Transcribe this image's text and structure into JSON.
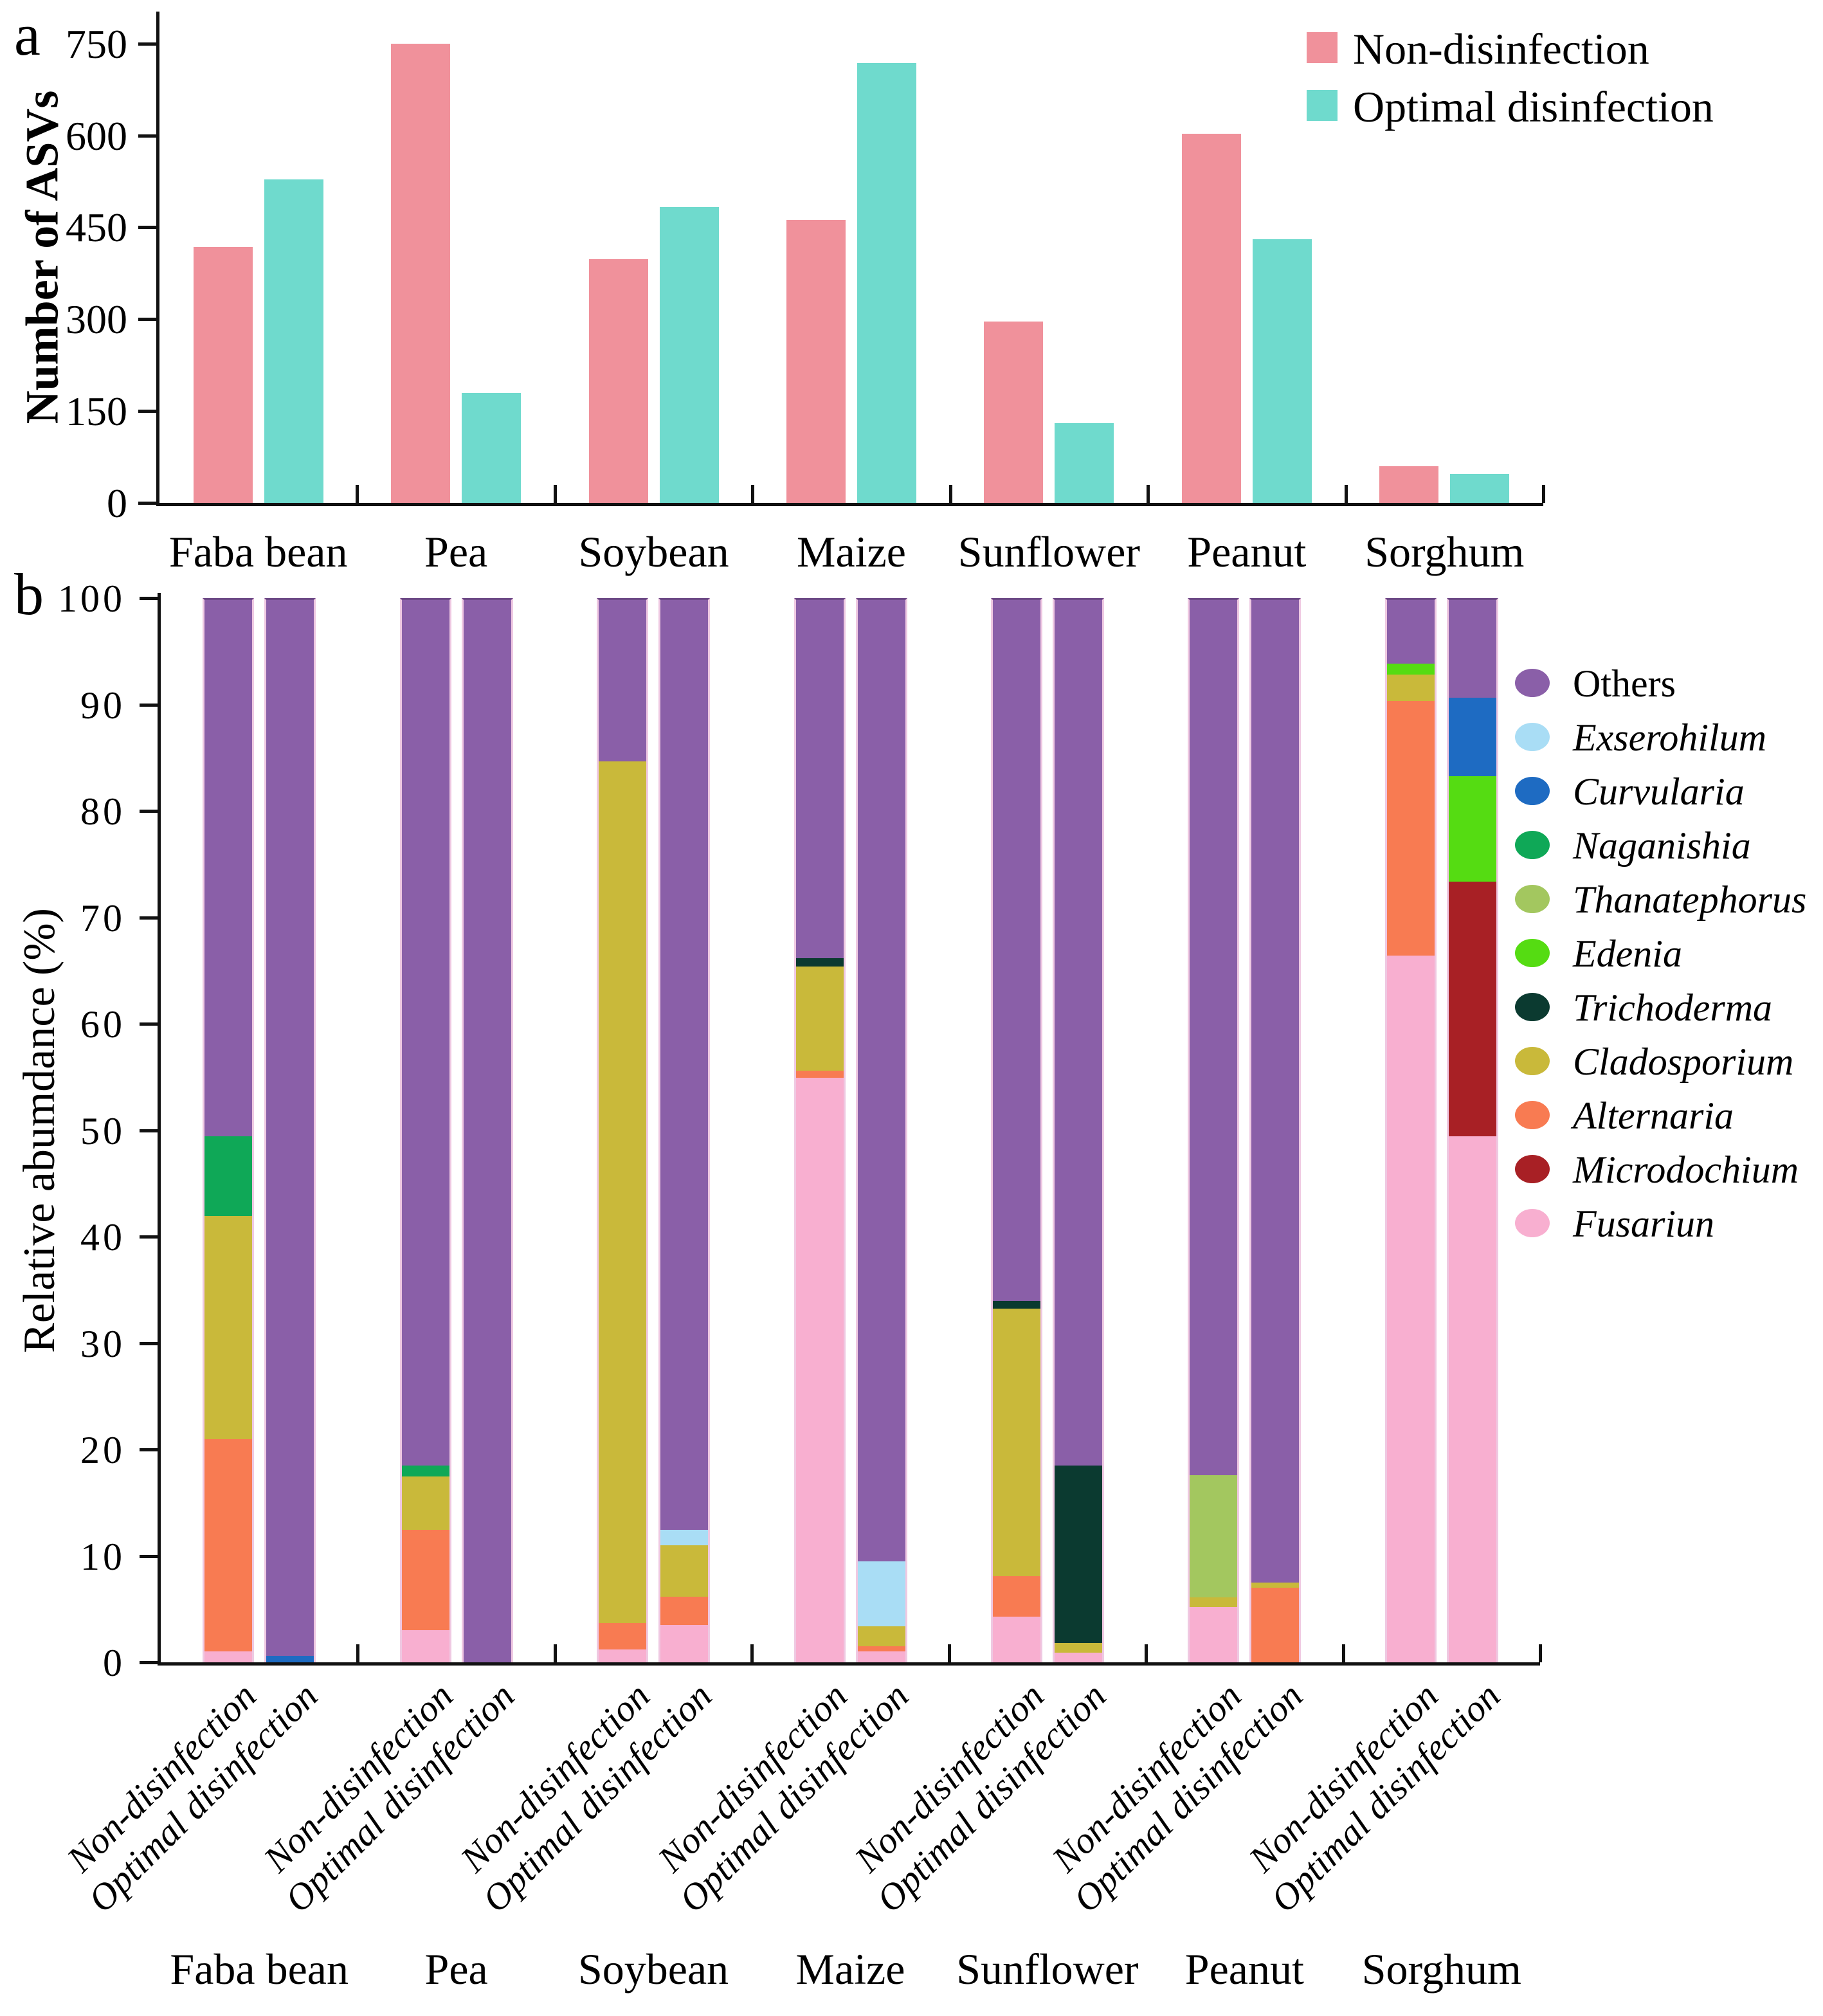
{
  "figure": {
    "panel_a_label": "a",
    "panel_b_label": "b"
  },
  "categories": [
    "Faba bean",
    "Pea",
    "Soybean",
    "Maize",
    "Sunflower",
    "Peanut",
    "Sorghum"
  ],
  "conditions": [
    "Non-disinfection",
    "Optimal disinfection"
  ],
  "colors": {
    "non_disinfection": "#F0919B",
    "optimal_disinfection": "#6FDACD",
    "Others": "#8A5FA8",
    "Exserohilum": "#A9DDF5",
    "Curvularia": "#1E6BC2",
    "Naganishia": "#0FA857",
    "Thanatephorus": "#A3C75F",
    "Edenia": "#55DC12",
    "Trichoderma": "#0B3A30",
    "Cladosporium": "#C9B93A",
    "Alternaria": "#F87B52",
    "Microdochium": "#A82025",
    "Fusariun": "#F8AFD0"
  },
  "chart_data": [
    {
      "type": "bar",
      "panel": "a",
      "ylabel": "Number of ASVs",
      "ylim": [
        0,
        800
      ],
      "yticks": [
        0,
        150,
        300,
        450,
        600,
        750
      ],
      "grid": false,
      "legend_position": "top-right",
      "categories": [
        "Faba bean",
        "Pea",
        "Soybean",
        "Maize",
        "Sunflower",
        "Peanut",
        "Sorghum"
      ],
      "series": [
        {
          "name": "Non-disinfection",
          "color_key": "non_disinfection",
          "values": [
            418,
            750,
            398,
            462,
            296,
            603,
            60
          ]
        },
        {
          "name": "Optimal disinfection",
          "color_key": "optimal_disinfection",
          "values": [
            528,
            180,
            483,
            718,
            130,
            430,
            47
          ]
        }
      ]
    },
    {
      "type": "stacked-bar",
      "panel": "b",
      "ylabel": "Relative abumdance (%)",
      "ylim": [
        0,
        100
      ],
      "yticks": [
        0,
        10,
        20,
        30,
        40,
        50,
        60,
        70,
        80,
        90,
        100
      ],
      "grid": false,
      "legend_position": "right",
      "categories": [
        "Faba bean",
        "Pea",
        "Soybean",
        "Maize",
        "Sunflower",
        "Peanut",
        "Sorghum"
      ],
      "bar_labels": [
        "Non-disinfection",
        "Optimal disinfection"
      ],
      "legend": [
        {
          "label": "Others",
          "color_key": "Others",
          "italic": false
        },
        {
          "label": "Exserohilum",
          "color_key": "Exserohilum",
          "italic": true
        },
        {
          "label": "Curvularia",
          "color_key": "Curvularia",
          "italic": true
        },
        {
          "label": "Naganishia",
          "color_key": "Naganishia",
          "italic": true
        },
        {
          "label": "Thanatephorus",
          "color_key": "Thanatephorus",
          "italic": true
        },
        {
          "label": "Edenia",
          "color_key": "Edenia",
          "italic": true
        },
        {
          "label": "Trichoderma",
          "color_key": "Trichoderma",
          "italic": true
        },
        {
          "label": "Cladosporium",
          "color_key": "Cladosporium",
          "italic": true
        },
        {
          "label": "Alternaria",
          "color_key": "Alternaria",
          "italic": true
        },
        {
          "label": "Microdochium",
          "color_key": "Microdochium",
          "italic": true
        },
        {
          "label": "Fusariun",
          "color_key": "Fusariun",
          "italic": true
        }
      ],
      "bars": [
        {
          "category": "Faba bean",
          "condition": "Non-disinfection",
          "segments": [
            [
              "Fusariun",
              1.0
            ],
            [
              "Alternaria",
              20.0
            ],
            [
              "Cladosporium",
              21.0
            ],
            [
              "Naganishia",
              7.5
            ],
            [
              "Others",
              50.5
            ]
          ]
        },
        {
          "category": "Faba bean",
          "condition": "Optimal disinfection",
          "segments": [
            [
              "Curvularia",
              0.6
            ],
            [
              "Others",
              99.4
            ]
          ]
        },
        {
          "category": "Pea",
          "condition": "Non-disinfection",
          "segments": [
            [
              "Fusariun",
              3.0
            ],
            [
              "Alternaria",
              9.5
            ],
            [
              "Cladosporium",
              5.0
            ],
            [
              "Naganishia",
              1.0
            ],
            [
              "Others",
              81.5
            ]
          ]
        },
        {
          "category": "Pea",
          "condition": "Optimal disinfection",
          "segments": [
            [
              "Others",
              100.0
            ]
          ]
        },
        {
          "category": "Soybean",
          "condition": "Non-disinfection",
          "segments": [
            [
              "Fusariun",
              1.2
            ],
            [
              "Alternaria",
              2.5
            ],
            [
              "Cladosporium",
              81.1
            ],
            [
              "Others",
              15.2
            ]
          ]
        },
        {
          "category": "Soybean",
          "condition": "Optimal disinfection",
          "segments": [
            [
              "Fusariun",
              3.5
            ],
            [
              "Alternaria",
              2.7
            ],
            [
              "Cladosporium",
              4.8
            ],
            [
              "Exserohilum",
              1.5
            ],
            [
              "Others",
              87.5
            ]
          ]
        },
        {
          "category": "Maize",
          "condition": "Non-disinfection",
          "segments": [
            [
              "Fusariun",
              55.0
            ],
            [
              "Alternaria",
              0.7
            ],
            [
              "Cladosporium",
              9.8
            ],
            [
              "Trichoderma",
              0.8
            ],
            [
              "Others",
              33.7
            ]
          ]
        },
        {
          "category": "Maize",
          "condition": "Optimal disinfection",
          "segments": [
            [
              "Fusariun",
              1.0
            ],
            [
              "Alternaria",
              0.5
            ],
            [
              "Cladosporium",
              1.9
            ],
            [
              "Exserohilum",
              6.1
            ],
            [
              "Others",
              90.5
            ]
          ]
        },
        {
          "category": "Sunflower",
          "condition": "Non-disinfection",
          "segments": [
            [
              "Fusariun",
              4.3
            ],
            [
              "Alternaria",
              3.8
            ],
            [
              "Cladosporium",
              25.2
            ],
            [
              "Trichoderma",
              0.7
            ],
            [
              "Others",
              66.0
            ]
          ]
        },
        {
          "category": "Sunflower",
          "condition": "Optimal disinfection",
          "segments": [
            [
              "Fusariun",
              0.9
            ],
            [
              "Cladosporium",
              0.9
            ],
            [
              "Trichoderma",
              16.7
            ],
            [
              "Others",
              81.5
            ]
          ]
        },
        {
          "category": "Peanut",
          "condition": "Non-disinfection",
          "segments": [
            [
              "Fusariun",
              5.2
            ],
            [
              "Cladosporium",
              0.9
            ],
            [
              "Thanatephorus",
              11.5
            ],
            [
              "Others",
              82.4
            ]
          ]
        },
        {
          "category": "Peanut",
          "condition": "Optimal disinfection",
          "segments": [
            [
              "Alternaria",
              7.0
            ],
            [
              "Cladosporium",
              0.5
            ],
            [
              "Others",
              92.5
            ]
          ]
        },
        {
          "category": "Sorghum",
          "condition": "Non-disinfection",
          "segments": [
            [
              "Fusariun",
              66.5
            ],
            [
              "Alternaria",
              24.0
            ],
            [
              "Cladosporium",
              2.5
            ],
            [
              "Edenia",
              1.0
            ],
            [
              "Others",
              6.0
            ]
          ]
        },
        {
          "category": "Sorghum",
          "condition": "Optimal disinfection",
          "segments": [
            [
              "Fusariun",
              49.5
            ],
            [
              "Microdochium",
              24.0
            ],
            [
              "Edenia",
              9.9
            ],
            [
              "Curvularia",
              7.4
            ],
            [
              "Others",
              9.2
            ]
          ]
        }
      ]
    }
  ]
}
